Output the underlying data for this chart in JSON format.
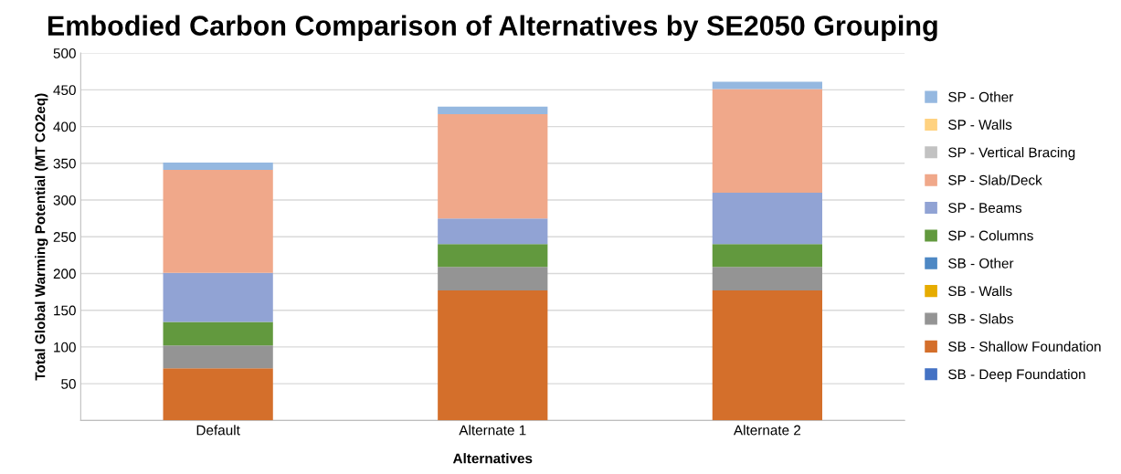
{
  "chart_data": {
    "type": "bar",
    "title": "Embodied Carbon Comparison of Alternatives by SE2050 Grouping",
    "xlabel": "Alternatives",
    "ylabel": "Total Global Warming Potential (MT CO2eq)",
    "categories": [
      "Default",
      "Alternate 1",
      "Alternate 2"
    ],
    "stacked": true,
    "ylim": [
      0,
      500
    ],
    "yticks": [
      {
        "value": 0,
        "label": null
      },
      50,
      100,
      150,
      200,
      250,
      300,
      350,
      400,
      450,
      500
    ],
    "grid": "y",
    "legend": "right",
    "series": [
      {
        "name": "SB - Deep Foundation",
        "color": "#4472c4",
        "values": [
          0,
          0,
          0
        ]
      },
      {
        "name": "SB - Shallow Foundation",
        "color": "#d46f2b",
        "values": [
          71,
          177,
          177
        ]
      },
      {
        "name": "SB - Slabs",
        "color": "#949494",
        "values": [
          31,
          32,
          32
        ]
      },
      {
        "name": "SB - Walls",
        "color": "#e6ac00",
        "values": [
          0,
          0,
          0
        ]
      },
      {
        "name": "SB - Other",
        "color": "#4e88c4",
        "values": [
          0,
          0,
          0
        ]
      },
      {
        "name": "SP - Columns",
        "color": "#62993e",
        "values": [
          32,
          31,
          31
        ]
      },
      {
        "name": "SP - Beams",
        "color": "#91a3d4",
        "values": [
          67,
          35,
          70
        ]
      },
      {
        "name": "SP - Slab/Deck",
        "color": "#f0a88a",
        "values": [
          140,
          142,
          141
        ]
      },
      {
        "name": "SP - Vertical Bracing",
        "color": "#c2c2c2",
        "values": [
          0,
          0,
          0
        ]
      },
      {
        "name": "SP - Walls",
        "color": "#ffd280",
        "values": [
          0,
          0,
          0
        ]
      },
      {
        "name": "SP - Other",
        "color": "#95b8e0",
        "values": [
          10,
          10,
          10
        ]
      }
    ]
  }
}
